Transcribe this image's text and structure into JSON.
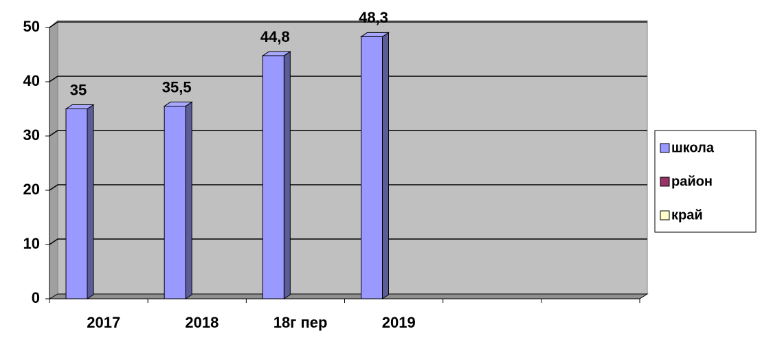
{
  "chart_data": {
    "type": "bar",
    "categories": [
      "2017",
      "2018",
      "18г пер",
      "2019",
      null,
      null
    ],
    "series": [
      {
        "name": "школа",
        "color": "#9999ff",
        "values": [
          35,
          35.5,
          44.8,
          48.3,
          null,
          null
        ],
        "value_labels": [
          "35",
          "35,5",
          "44,8",
          "48,3",
          null,
          null
        ]
      },
      {
        "name": "район",
        "color": "#993366",
        "values": [
          null,
          null,
          null,
          null,
          null,
          null
        ]
      },
      {
        "name": "край",
        "color": "#ffffcc",
        "values": [
          null,
          null,
          null,
          null,
          null,
          null
        ]
      }
    ],
    "ylim": [
      0,
      50
    ],
    "yticks": [
      0,
      10,
      20,
      30,
      40,
      50
    ],
    "grid": true,
    "legend": "right"
  }
}
